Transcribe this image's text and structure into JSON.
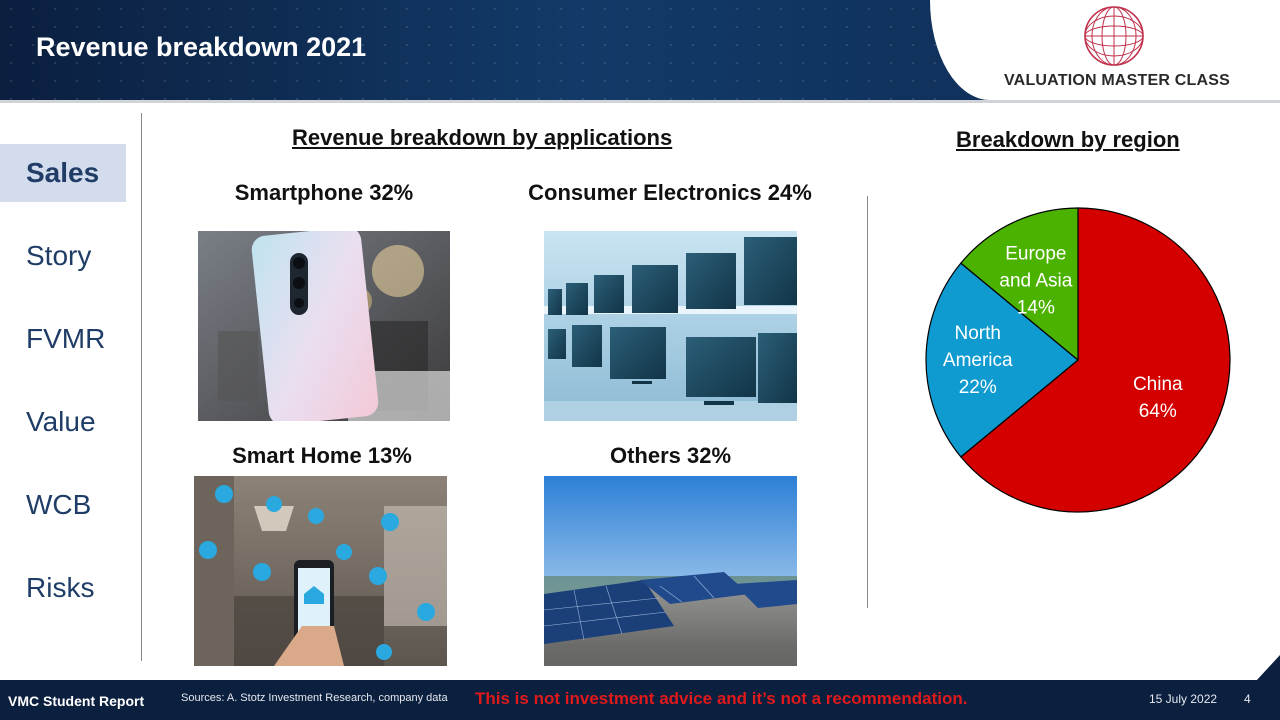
{
  "header": {
    "title": "Revenue breakdown 2021",
    "brand": "VALUATION MASTER CLASS"
  },
  "nav": {
    "items": [
      {
        "label": "Sales",
        "active": true
      },
      {
        "label": "Story",
        "active": false
      },
      {
        "label": "FVMR",
        "active": false
      },
      {
        "label": "Value",
        "active": false
      },
      {
        "label": "WCB",
        "active": false
      },
      {
        "label": "Risks",
        "active": false
      }
    ]
  },
  "applications": {
    "title": "Revenue breakdown by applications",
    "items": [
      {
        "caption": "Smartphone 32%",
        "image": "smartphone-photo"
      },
      {
        "caption": "Consumer Electronics 24%",
        "image": "tv-displays-photo"
      },
      {
        "caption": "Smart Home 13%",
        "image": "smart-home-photo"
      },
      {
        "caption": "Others 32%",
        "image": "solar-panels-photo"
      }
    ]
  },
  "region": {
    "title": "Breakdown by region"
  },
  "chart_data": {
    "type": "pie",
    "title": "Breakdown by region",
    "slices": [
      {
        "label_lines": [
          "China",
          "64%"
        ],
        "value": 64,
        "color": "#d40000"
      },
      {
        "label_lines": [
          "North",
          "America",
          "22%"
        ],
        "value": 22,
        "color": "#0f9ad0"
      },
      {
        "label_lines": [
          "Europe",
          "and Asia",
          "14%"
        ],
        "value": 14,
        "color": "#4cb200"
      }
    ],
    "start_angle_deg": 0,
    "direction": "clockwise",
    "label_colors": {
      "China": "#ffffff",
      "North America": "#ffffff",
      "Europe and Asia": "#ffffff"
    }
  },
  "footer": {
    "report": "VMC Student Report",
    "sources": "Sources: A. Stotz Investment Research, company data",
    "disclaimer": "This is not investment advice and it’s not a recommendation.",
    "date": "15 July 2022",
    "page": "4"
  }
}
